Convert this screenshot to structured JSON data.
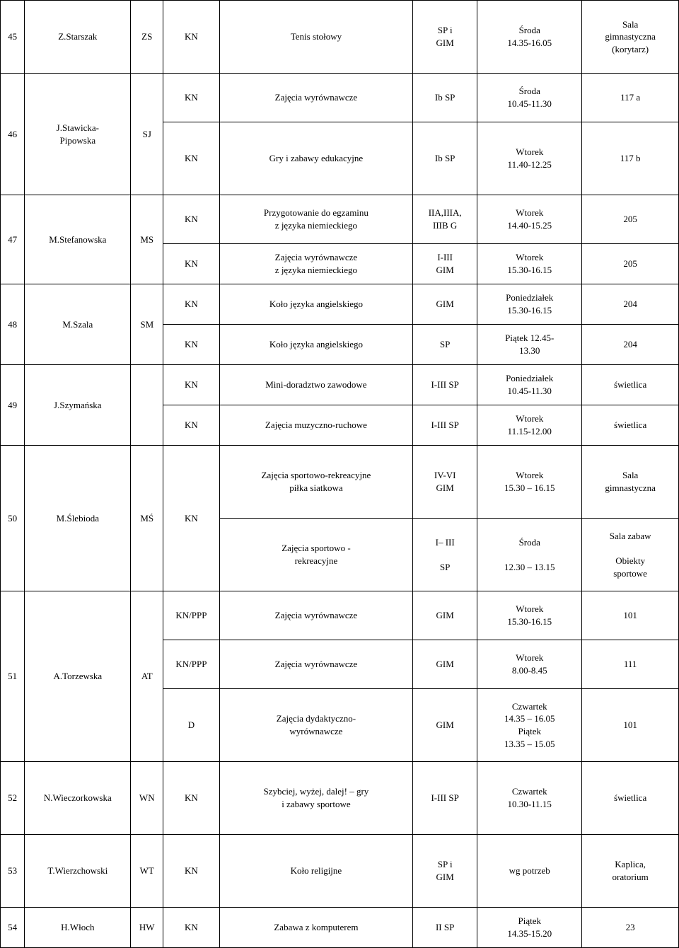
{
  "rows": [
    {
      "num": "45",
      "name": "Z.Starszak",
      "code": "ZS",
      "sub": [
        {
          "type": "KN",
          "activity": "Tenis stołowy",
          "group": "SP i\nGIM",
          "time": "Środa\n14.35-16.05",
          "room": "Sala\ngimnastyczna\n(korytarz)"
        }
      ]
    },
    {
      "num": "46",
      "name": "J.Stawicka-\nPipowska",
      "code": "SJ",
      "sub": [
        {
          "type": "KN",
          "activity": "Zajęcia wyrównawcze",
          "group": "Ib SP",
          "time": "Środa\n10.45-11.30",
          "room": "117 a"
        },
        {
          "type": "KN",
          "activity": "Gry i zabawy edukacyjne",
          "group": "Ib SP",
          "time": "Wtorek\n11.40-12.25",
          "room": "117 b"
        }
      ]
    },
    {
      "num": "47",
      "name": "M.Stefanowska",
      "code": "MS",
      "sub": [
        {
          "type": "KN",
          "activity": "Przygotowanie do egzaminu\nz języka niemieckiego",
          "group": "IIA,IIIA,\nIIIB G",
          "time": "Wtorek\n14.40-15.25",
          "room": "205"
        },
        {
          "type": "KN",
          "activity": "Zajęcia wyrównawcze\nz języka niemieckiego",
          "group": "I-III\nGIM",
          "time": "Wtorek\n15.30-16.15",
          "room": "205"
        }
      ]
    },
    {
      "num": "48",
      "name": "M.Szala",
      "code": "SM",
      "sub": [
        {
          "type": "KN",
          "activity": "Koło  języka angielskiego",
          "group": "GIM",
          "time": "Poniedziałek\n15.30-16.15",
          "room": "204"
        },
        {
          "type": "KN",
          "activity": "Koło  języka angielskiego",
          "group": "SP",
          "time": "Piątek 12.45-\n13.30",
          "room": "204"
        }
      ]
    },
    {
      "num": "49",
      "name": "J.Szymańska",
      "code": "",
      "sub": [
        {
          "type": "KN",
          "activity": "Mini-doradztwo zawodowe",
          "group": "I-III SP",
          "time": "Poniedziałek\n10.45-11.30",
          "room": "świetlica"
        },
        {
          "type": "KN",
          "activity": "Zajęcia muzyczno-ruchowe",
          "group": "I-III SP",
          "time": "Wtorek\n11.15-12.00",
          "room": "świetlica"
        }
      ]
    },
    {
      "num": "50",
      "name": "M.Ślebioda",
      "code": "MŚ",
      "mergetype": "KN",
      "sub": [
        {
          "activity": "Zajęcia sportowo-rekreacyjne\npiłka siatkowa",
          "group": "IV-VI\nGIM",
          "time": "Wtorek\n15.30 – 16.15",
          "room": "Sala\ngimnastyczna"
        },
        {
          "activity": "Zajęcia sportowo -\nrekreacyjne",
          "group": "I– III\n\nSP",
          "time": "Środa\n\n12.30 – 13.15",
          "room": "Sala zabaw\n\nObiekty\nsportowe"
        }
      ]
    },
    {
      "num": "51",
      "name": "A.Torzewska",
      "code": "AT",
      "sub": [
        {
          "type": "KN/PPP",
          "activity": "Zajęcia wyrównawcze",
          "group": "GIM",
          "time": "Wtorek\n15.30-16.15",
          "room": "101"
        },
        {
          "type": "KN/PPP",
          "activity": "Zajęcia wyrównawcze",
          "group": "GIM",
          "time": "Wtorek\n8.00-8.45",
          "room": "111"
        },
        {
          "type": "D",
          "activity": "Zajęcia dydaktyczno-\nwyrównawcze",
          "group": "GIM",
          "time": "Czwartek\n14.35 – 16.05\nPiątek\n13.35 – 15.05",
          "room": "101"
        }
      ]
    },
    {
      "num": "52",
      "name": "N.Wieczorkowska",
      "code": "WN",
      "sub": [
        {
          "type": "KN",
          "activity": "Szybciej, wyżej, dalej! – gry\ni zabawy sportowe",
          "group": "I-III SP",
          "time": "Czwartek\n10.30-11.15",
          "room": "świetlica"
        }
      ]
    },
    {
      "num": "53",
      "name": "T.Wierzchowski",
      "code": "WT",
      "sub": [
        {
          "type": "KN",
          "activity": "Koło religijne",
          "group": "SP i\nGIM",
          "time": "wg potrzeb",
          "room": "Kaplica,\noratorium"
        }
      ]
    },
    {
      "num": "54",
      "name": "H.Włoch",
      "code": "HW",
      "sub": [
        {
          "type": "KN",
          "activity": "Zabawa z komputerem",
          "group": "II SP",
          "time": "Piątek\n14.35-15.20",
          "room": "23"
        }
      ]
    }
  ],
  "colors": {
    "border": "#000000",
    "text": "#000000",
    "background": "#ffffff"
  }
}
